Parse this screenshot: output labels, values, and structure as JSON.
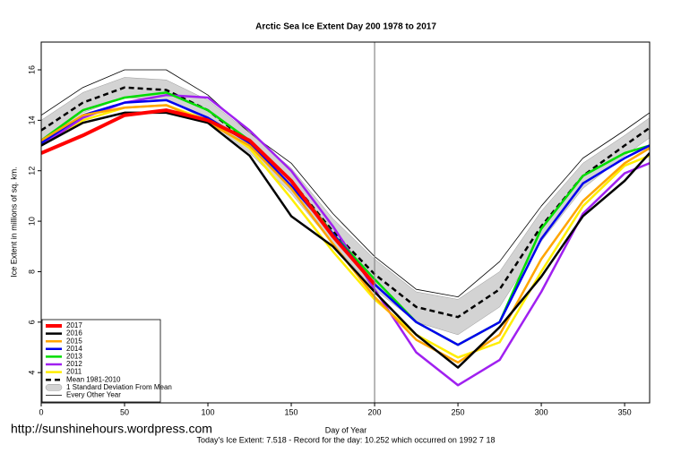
{
  "chart_data": {
    "type": "line",
    "title": "Arctic Sea Ice Extent Day 200 1978 to 2017",
    "x_label": "Day of Year",
    "y_label": "Ice Extent in millions of sq. km.",
    "footer": "Today's Ice Extent: 7.518  - Record for the day: 10.252 which occurred on 1992 7 18",
    "watermark": "http://sunshinehours.wordpress.com",
    "marker_x": 200,
    "xlim": [
      0,
      365
    ],
    "ylim": [
      2.8,
      17.1
    ],
    "xticks": [
      0,
      50,
      100,
      150,
      200,
      250,
      300,
      350
    ],
    "yticks": [
      4,
      6,
      8,
      10,
      12,
      14,
      16
    ],
    "legend": "bottom-left",
    "x": [
      0,
      25,
      50,
      75,
      100,
      125,
      150,
      175,
      200,
      225,
      250,
      275,
      300,
      325,
      350,
      365
    ],
    "series": [
      {
        "name": "Every Other Year",
        "color": "#000000",
        "style": "thin",
        "values": [
          14.2,
          15.3,
          16.0,
          16.0,
          15.0,
          13.5,
          12.3,
          10.3,
          8.6,
          7.3,
          7.0,
          8.4,
          10.6,
          12.5,
          13.6,
          14.3
        ]
      },
      {
        "name": "1 Standard Deviation From Mean",
        "color": "#d3d3d3",
        "style": "band",
        "lower": [
          13.2,
          14.3,
          14.9,
          14.8,
          14.0,
          12.7,
          11.1,
          9.1,
          7.3,
          6.0,
          5.5,
          6.6,
          9.2,
          11.3,
          12.6,
          13.3
        ],
        "upper": [
          14.0,
          15.1,
          15.7,
          15.6,
          14.8,
          13.5,
          12.1,
          10.1,
          8.5,
          7.2,
          6.9,
          8.0,
          10.4,
          12.3,
          13.4,
          14.1
        ]
      },
      {
        "name": "Mean 1981-2010",
        "color": "#000000",
        "style": "dashed",
        "values": [
          13.6,
          14.7,
          15.3,
          15.2,
          14.4,
          13.1,
          11.6,
          9.6,
          7.9,
          6.6,
          6.2,
          7.3,
          9.8,
          11.8,
          13.0,
          13.7
        ]
      },
      {
        "name": "2011",
        "color": "#ffee00",
        "style": "normal",
        "values": [
          13.0,
          14.0,
          14.5,
          14.6,
          14.0,
          12.9,
          10.9,
          8.8,
          6.9,
          5.5,
          4.6,
          5.2,
          8.0,
          10.6,
          12.2,
          12.6
        ]
      },
      {
        "name": "2012",
        "color": "#a020f0",
        "style": "normal",
        "values": [
          13.0,
          14.1,
          14.7,
          15.0,
          14.9,
          13.6,
          12.0,
          9.8,
          7.3,
          4.8,
          3.5,
          4.5,
          7.2,
          10.3,
          11.9,
          12.3
        ]
      },
      {
        "name": "2013",
        "color": "#00dd00",
        "style": "normal",
        "values": [
          13.2,
          14.4,
          14.9,
          15.1,
          14.4,
          13.2,
          11.6,
          9.5,
          7.7,
          6.0,
          5.1,
          6.0,
          9.7,
          11.8,
          12.7,
          13.0
        ]
      },
      {
        "name": "2014",
        "color": "#0000ee",
        "style": "normal",
        "values": [
          13.1,
          14.2,
          14.7,
          14.8,
          14.1,
          13.1,
          11.4,
          9.5,
          7.5,
          6.0,
          5.1,
          6.0,
          9.3,
          11.5,
          12.5,
          13.0
        ]
      },
      {
        "name": "2015",
        "color": "#ffa500",
        "style": "normal",
        "values": [
          13.2,
          14.2,
          14.5,
          14.6,
          13.9,
          13.0,
          11.3,
          9.1,
          7.0,
          5.3,
          4.4,
          5.5,
          8.5,
          10.8,
          12.3,
          12.9
        ]
      },
      {
        "name": "2016",
        "color": "#000000",
        "style": "normal",
        "values": [
          13.0,
          13.9,
          14.3,
          14.3,
          13.9,
          12.6,
          10.2,
          9.0,
          7.2,
          5.5,
          4.2,
          5.8,
          7.8,
          10.2,
          11.6,
          12.7
        ]
      },
      {
        "name": "2017",
        "color": "#ff0000",
        "style": "thick",
        "values": [
          12.7,
          13.4,
          14.2,
          14.4,
          14.0,
          13.2,
          11.6,
          9.4,
          7.5,
          null,
          null,
          null,
          null,
          null,
          null,
          null
        ]
      }
    ]
  }
}
